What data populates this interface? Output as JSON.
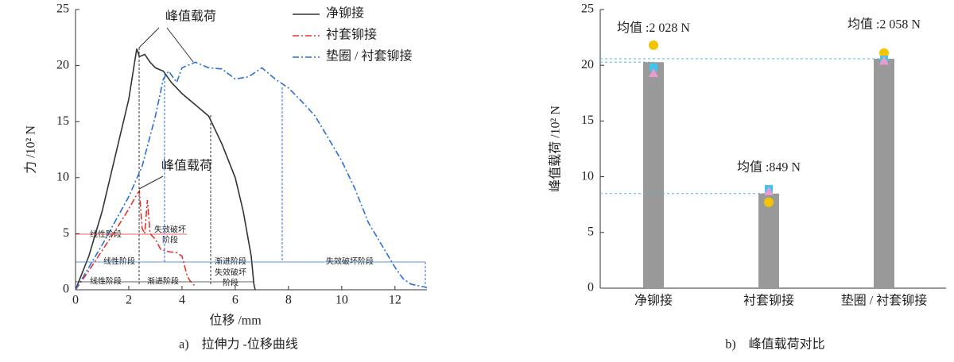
{
  "chart_data": [
    {
      "type": "line",
      "caption": "a)　拉伸力 -位移曲线",
      "xlabel": "位移 /mm",
      "ylabel": "力 /10² N",
      "xlim": [
        0,
        13.2
      ],
      "xticks": [
        0,
        2,
        4,
        6,
        8,
        10,
        12
      ],
      "ylim": [
        0,
        25
      ],
      "yticks": [
        0,
        5,
        10,
        15,
        20,
        25
      ],
      "annotations": [
        "峰值载荷",
        "峰值载荷",
        "线性阶段",
        "失效破坏",
        "阶段",
        "线性阶段",
        "渐进阶段",
        "失效破坏阶段",
        "线性阶段",
        "渐进阶段",
        "失效破坏",
        "阶段"
      ],
      "series": [
        {
          "name": "净铆接",
          "color": "#333333",
          "dash": "none",
          "x": [
            0,
            0.5,
            1,
            1.5,
            2,
            2.3,
            2.4,
            2.6,
            2.8,
            3,
            3.3,
            3.6,
            4,
            4.5,
            5,
            5.5,
            6,
            6.3,
            6.6,
            6.7,
            6.75
          ],
          "values": [
            0,
            3,
            7,
            12,
            17,
            21.5,
            20.8,
            21,
            20.3,
            19.8,
            19.5,
            18.5,
            17.5,
            16.5,
            15.5,
            13,
            10,
            7,
            3,
            0.5,
            0
          ]
        },
        {
          "name": "衬套铆接",
          "color": "#e8312a",
          "dash": "8 3 2 3",
          "x": [
            0,
            0.5,
            1,
            1.5,
            2,
            2.3,
            2.4,
            2.5,
            2.6,
            2.7,
            2.8,
            3,
            3.2,
            3.5,
            3.8,
            4,
            4.2,
            4.3,
            4.5
          ],
          "values": [
            0,
            1.7,
            3.5,
            5.3,
            7.2,
            8.5,
            8.8,
            5.5,
            5,
            8,
            5,
            4.5,
            3.6,
            3.4,
            3.3,
            3,
            1.2,
            0.8,
            0.3
          ]
        },
        {
          "name": "垫圈 / 衬套铆接",
          "color": "#2a6fdc",
          "dash": "8 3 2 3",
          "x": [
            0,
            1,
            2,
            2.5,
            3,
            3.3,
            3.5,
            3.8,
            4,
            4.5,
            5,
            5.5,
            6,
            6.5,
            7,
            7.5,
            8,
            8.5,
            9,
            9.5,
            10,
            10.5,
            11,
            11.5,
            12,
            12.3,
            12.6,
            13,
            13.2
          ],
          "values": [
            0,
            4,
            8.3,
            11,
            15.5,
            18.8,
            19.5,
            18.5,
            19.8,
            20.3,
            19.8,
            19.7,
            18.8,
            19,
            19.8,
            18.8,
            18,
            16.8,
            15.5,
            13.5,
            11.5,
            9,
            6,
            4,
            2,
            1,
            0.5,
            0.3,
            0.2
          ]
        }
      ]
    },
    {
      "type": "bar",
      "caption": "b)　峰值载荷对比",
      "ylabel": "峰值载荷 /10² N",
      "ylim": [
        0,
        25
      ],
      "yticks": [
        0,
        5,
        10,
        15,
        20,
        25
      ],
      "color": "#999999",
      "refline_color": "#4ab8e0",
      "categories": [
        "净铆接",
        "衬套铆接",
        "垫圈 / 衬套铆接"
      ],
      "values": [
        20.28,
        8.49,
        20.58
      ],
      "value_labels": [
        "均值 :2 028 N",
        "均值 :849 N",
        "均值 :2 058 N"
      ],
      "samples": [
        {
          "marker": "circle",
          "color": "#f5c400",
          "values": [
            21.8,
            7.7,
            21.1
          ]
        },
        {
          "marker": "square",
          "color": "#3fc6ec",
          "values": [
            19.8,
            8.9,
            20.5
          ]
        },
        {
          "marker": "triangle",
          "color": "#e99ad0",
          "values": [
            19.3,
            8.7,
            20.4
          ]
        }
      ]
    }
  ]
}
